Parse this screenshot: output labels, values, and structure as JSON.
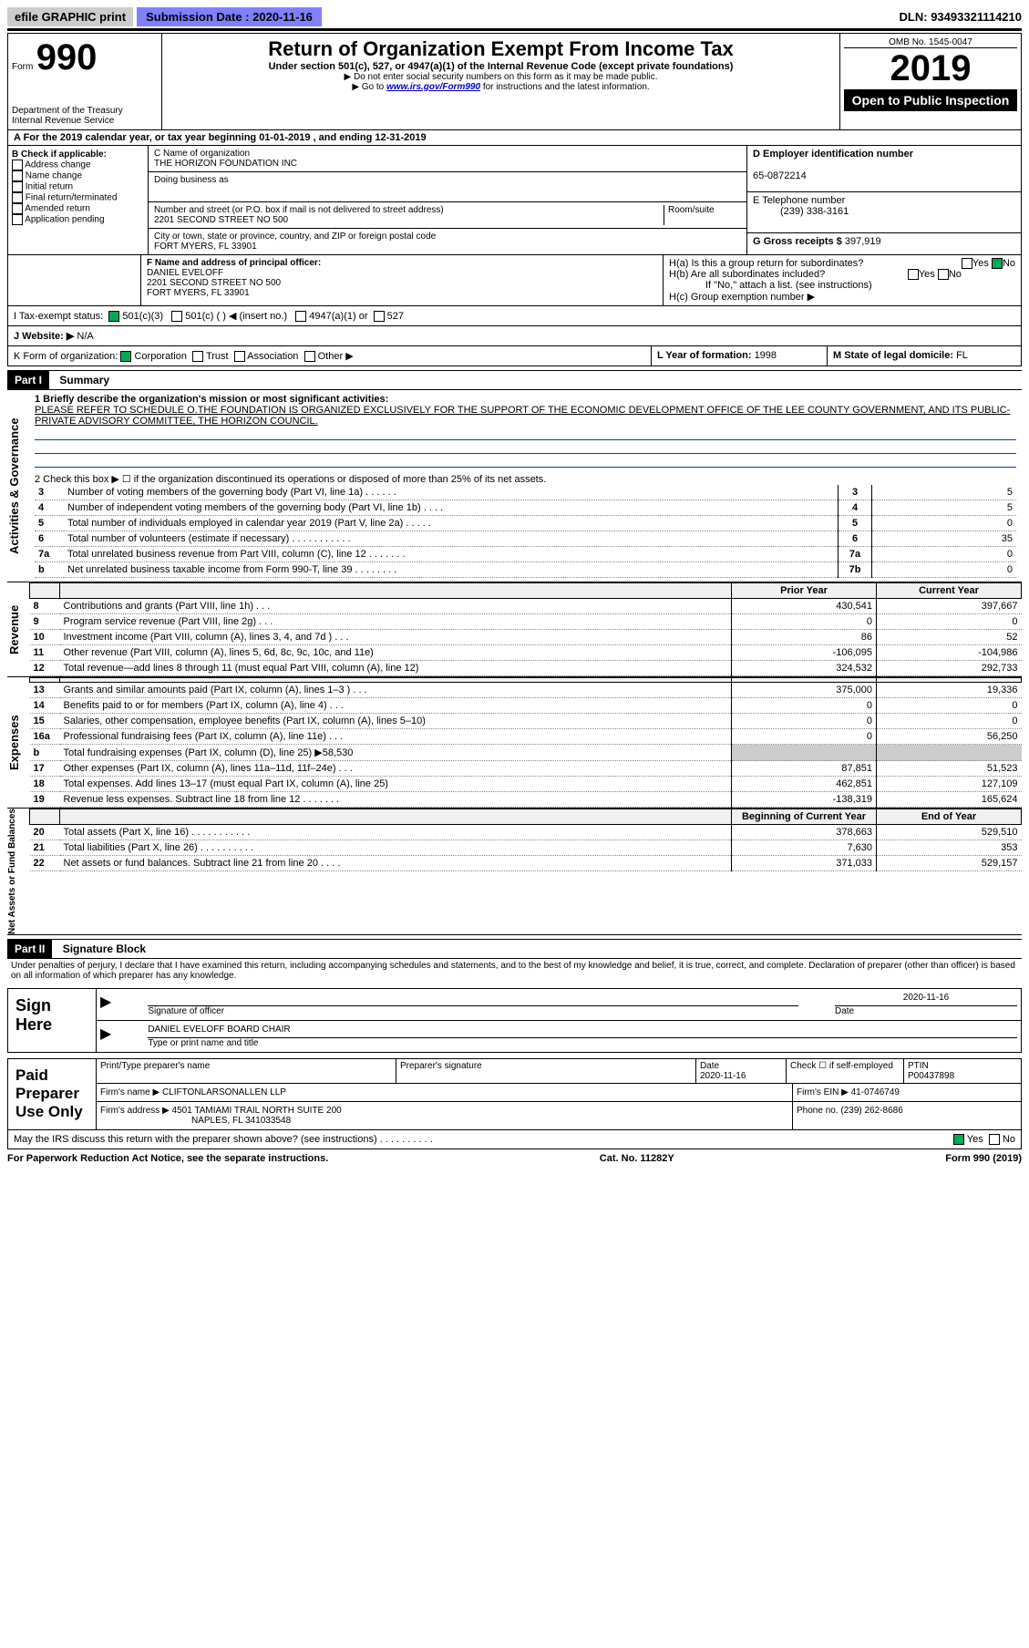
{
  "top": {
    "efile": "efile GRAPHIC print",
    "sub_label": "Submission Date :",
    "sub_date": "2020-11-16",
    "dln": "DLN: 93493321114210"
  },
  "header": {
    "form_word": "Form",
    "form_no": "990",
    "title": "Return of Organization Exempt From Income Tax",
    "subtitle": "Under section 501(c), 527, or 4947(a)(1) of the Internal Revenue Code (except private foundations)",
    "note1": "▶ Do not enter social security numbers on this form as it may be made public.",
    "note2_pre": "▶ Go to ",
    "note2_link": "www.irs.gov/Form990",
    "note2_post": " for instructions and the latest information.",
    "dept": "Department of the Treasury",
    "irs": "Internal Revenue Service",
    "omb": "OMB No. 1545-0047",
    "year": "2019",
    "open": "Open to Public Inspection"
  },
  "period": "A For the 2019 calendar year, or tax year beginning 01-01-2019   , and ending 12-31-2019",
  "checkB": {
    "title": "B Check if applicable:",
    "items": [
      "Address change",
      "Name change",
      "Initial return",
      "Final return/terminated",
      "Amended return",
      "Application pending"
    ]
  },
  "C": {
    "name_lbl": "C Name of organization",
    "name": "THE HORIZON FOUNDATION INC",
    "dba_lbl": "Doing business as",
    "addr_lbl": "Number and street (or P.O. box if mail is not delivered to street address)",
    "room_lbl": "Room/suite",
    "addr": "2201 SECOND STREET NO 500",
    "city_lbl": "City or town, state or province, country, and ZIP or foreign postal code",
    "city": "FORT MYERS, FL  33901"
  },
  "D": {
    "lbl": "D Employer identification number",
    "val": "65-0872214"
  },
  "E": {
    "lbl": "E Telephone number",
    "val": "(239) 338-3161"
  },
  "G": {
    "lbl": "G Gross receipts $ ",
    "val": "397,919"
  },
  "F": {
    "lbl": "F  Name and address of principal officer:",
    "name": "DANIEL EVELOFF",
    "addr1": "2201 SECOND STREET NO 500",
    "addr2": "FORT MYERS, FL  33901"
  },
  "H": {
    "a": "H(a)  Is this a group return for subordinates?",
    "b": "H(b)  Are all subordinates included?",
    "note": "If \"No,\" attach a list. (see instructions)",
    "c": "H(c)  Group exemption number ▶"
  },
  "I": {
    "lbl": "I   Tax-exempt status:",
    "c3": "501(c)(3)",
    "c": "501(c) (  ) ◀ (insert no.)",
    "a47": "4947(a)(1) or",
    "s527": "527"
  },
  "J": {
    "lbl": "J   Website: ▶",
    "val": "N/A"
  },
  "K": {
    "lbl": "K Form of organization:",
    "corp": "Corporation",
    "trust": "Trust",
    "assoc": "Association",
    "other": "Other ▶"
  },
  "L": {
    "lbl": "L Year of formation: ",
    "val": "1998"
  },
  "M": {
    "lbl": "M State of legal domicile: ",
    "val": "FL"
  },
  "part1": {
    "hdr": "Part I",
    "title": "Summary",
    "q1": "1  Briefly describe the organization's mission or most significant activities:",
    "mission": "PLEASE REFER TO SCHEDULE O.THE FOUNDATION IS ORGANIZED EXCLUSIVELY FOR THE SUPPORT OF THE ECONOMIC DEVELOPMENT OFFICE OF THE LEE COUNTY GOVERNMENT, AND ITS PUBLIC-PRIVATE ADVISORY COMMITTEE, THE HORIZON COUNCIL.",
    "q2": "2   Check this box ▶ ☐  if the organization discontinued its operations or disposed of more than 25% of its net assets.",
    "sections": {
      "gov": "Activities & Governance",
      "rev": "Revenue",
      "exp": "Expenses",
      "net": "Net Assets or Fund Balances"
    },
    "col_prior": "Prior Year",
    "col_current": "Current Year",
    "col_beg": "Beginning of Current Year",
    "col_end": "End of Year",
    "gov_lines": [
      {
        "n": "3",
        "t": "Number of voting members of the governing body (Part VI, line 1a)  .    .    .    .    .    .",
        "box": "3",
        "v": "5"
      },
      {
        "n": "4",
        "t": "Number of independent voting members of the governing body (Part VI, line 1b)  .    .    .    .",
        "box": "4",
        "v": "5"
      },
      {
        "n": "5",
        "t": "Total number of individuals employed in calendar year 2019 (Part V, line 2a)  .    .    .    .    .",
        "box": "5",
        "v": "0"
      },
      {
        "n": "6",
        "t": "Total number of volunteers (estimate if necessary)   .    .    .    .    .    .    .    .    .    .    .",
        "box": "6",
        "v": "35"
      },
      {
        "n": "7a",
        "t": "Total unrelated business revenue from Part VIII, column (C), line 12   .    .    .    .    .    .    .",
        "box": "7a",
        "v": "0"
      },
      {
        "n": "b",
        "t": "Net unrelated business taxable income from Form 990-T, line 39    .    .    .    .    .    .    .    .",
        "box": "7b",
        "v": "0"
      }
    ],
    "rev_lines": [
      {
        "n": "8",
        "t": "Contributions and grants (Part VIII, line 1h)   .    .    .",
        "p": "430,541",
        "c": "397,667"
      },
      {
        "n": "9",
        "t": "Program service revenue (Part VIII, line 2g)    .    .    .",
        "p": "0",
        "c": "0"
      },
      {
        "n": "10",
        "t": "Investment income (Part VIII, column (A), lines 3, 4, and 7d )    .    .    .",
        "p": "86",
        "c": "52"
      },
      {
        "n": "11",
        "t": "Other revenue (Part VIII, column (A), lines 5, 6d, 8c, 9c, 10c, and 11e)",
        "p": "-106,095",
        "c": "-104,986"
      },
      {
        "n": "12",
        "t": "Total revenue—add lines 8 through 11 (must equal Part VIII, column (A), line 12)",
        "p": "324,532",
        "c": "292,733"
      }
    ],
    "exp_lines": [
      {
        "n": "13",
        "t": "Grants and similar amounts paid (Part IX, column (A), lines 1–3 )  .    .    .",
        "p": "375,000",
        "c": "19,336"
      },
      {
        "n": "14",
        "t": "Benefits paid to or for members (Part IX, column (A), line 4)   .    .    .",
        "p": "0",
        "c": "0"
      },
      {
        "n": "15",
        "t": "Salaries, other compensation, employee benefits (Part IX, column (A), lines 5–10)",
        "p": "0",
        "c": "0"
      },
      {
        "n": "16a",
        "t": "Professional fundraising fees (Part IX, column (A), line 11e)   .    .    .",
        "p": "0",
        "c": "56,250"
      },
      {
        "n": "b",
        "t": "Total fundraising expenses (Part IX, column (D), line 25) ▶58,530",
        "p": "",
        "c": "",
        "gray": true
      },
      {
        "n": "17",
        "t": "Other expenses (Part IX, column (A), lines 11a–11d, 11f–24e)    .    .    .",
        "p": "87,851",
        "c": "51,523"
      },
      {
        "n": "18",
        "t": "Total expenses. Add lines 13–17 (must equal Part IX, column (A), line 25)",
        "p": "462,851",
        "c": "127,109"
      },
      {
        "n": "19",
        "t": "Revenue less expenses. Subtract line 18 from line 12 .    .    .    .    .    .    .",
        "p": "-138,319",
        "c": "165,624"
      }
    ],
    "net_lines": [
      {
        "n": "20",
        "t": "Total assets (Part X, line 16)  .    .    .    .    .    .    .    .    .    .    .",
        "p": "378,663",
        "c": "529,510"
      },
      {
        "n": "21",
        "t": "Total liabilities (Part X, line 26)   .    .    .    .    .    .    .    .    .    .",
        "p": "7,630",
        "c": "353"
      },
      {
        "n": "22",
        "t": "Net assets or fund balances. Subtract line 21 from line 20   .    .    .    .",
        "p": "371,033",
        "c": "529,157"
      }
    ]
  },
  "part2": {
    "hdr": "Part II",
    "title": "Signature Block",
    "decl": "Under penalties of perjury, I declare that I have examined this return, including accompanying schedules and statements, and to the best of my knowledge and belief, it is true, correct, and complete. Declaration of preparer (other than officer) is based on all information of which preparer has any knowledge."
  },
  "sign": {
    "here": "Sign Here",
    "sig_lbl": "Signature of officer",
    "date_lbl": "Date",
    "date": "2020-11-16",
    "name": "DANIEL EVELOFF  BOARD CHAIR",
    "name_lbl": "Type or print name and title"
  },
  "paid": {
    "title": "Paid Preparer Use Only",
    "pname_lbl": "Print/Type preparer's name",
    "psig_lbl": "Preparer's signature",
    "pdate_lbl": "Date",
    "pdate": "2020-11-16",
    "pself": "Check ☐ if self-employed",
    "ptin_lbl": "PTIN",
    "ptin": "P00437898",
    "firm_lbl": "Firm's name      ▶",
    "firm": "CLIFTONLARSONALLEN LLP",
    "fein_lbl": "Firm's EIN ▶",
    "fein": "41-0746749",
    "faddr_lbl": "Firm's address ▶",
    "faddr1": "4501 TAMIAMI TRAIL NORTH SUITE 200",
    "faddr2": "NAPLES, FL  341033548",
    "fphone_lbl": "Phone no. ",
    "fphone": "(239) 262-8686",
    "discuss": "May the IRS discuss this return with the preparer shown above? (see instructions)   .    .    .    .    .    .    .    .    .    .",
    "yes": "Yes",
    "no": "No"
  },
  "footer": {
    "pra": "For Paperwork Reduction Act Notice, see the separate instructions.",
    "cat": "Cat. No. 11282Y",
    "form": "Form 990 (2019)"
  }
}
